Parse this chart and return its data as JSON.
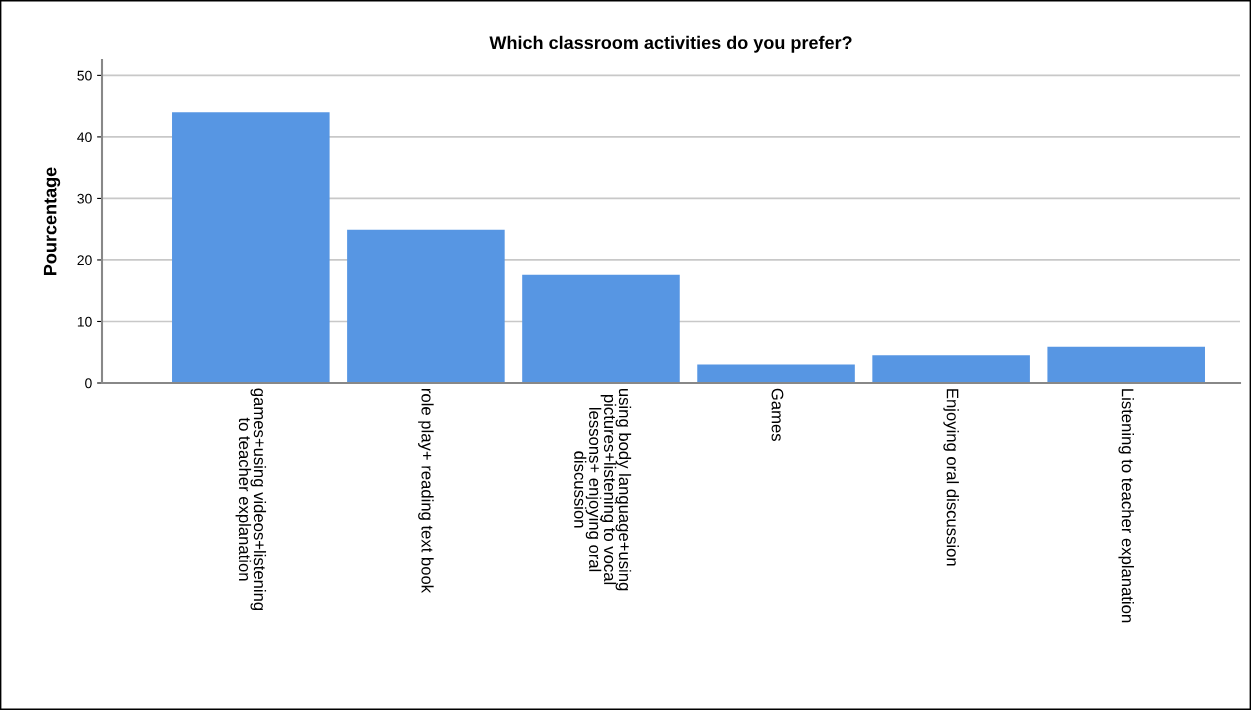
{
  "chart_data": {
    "type": "bar",
    "title": "Which classroom activities do you prefer?",
    "ylabel": "Pourcentage",
    "categories": [
      "games+using videos+listening\nto teacher explanation",
      "role play+ reading text book",
      "using body language+using\npictures+listening to vocal\nlessons+ enjoying oral\ndiscussion",
      "Games",
      "Enjoying oral discussion",
      "Listening to teacher explanation"
    ],
    "values": [
      44.0,
      24.9,
      17.6,
      3.0,
      4.5,
      5.9
    ],
    "color": "#5796e3",
    "ylim": [
      0,
      52.5
    ],
    "yticks": [
      0,
      10,
      20,
      30,
      40,
      50
    ],
    "grid": "y"
  }
}
